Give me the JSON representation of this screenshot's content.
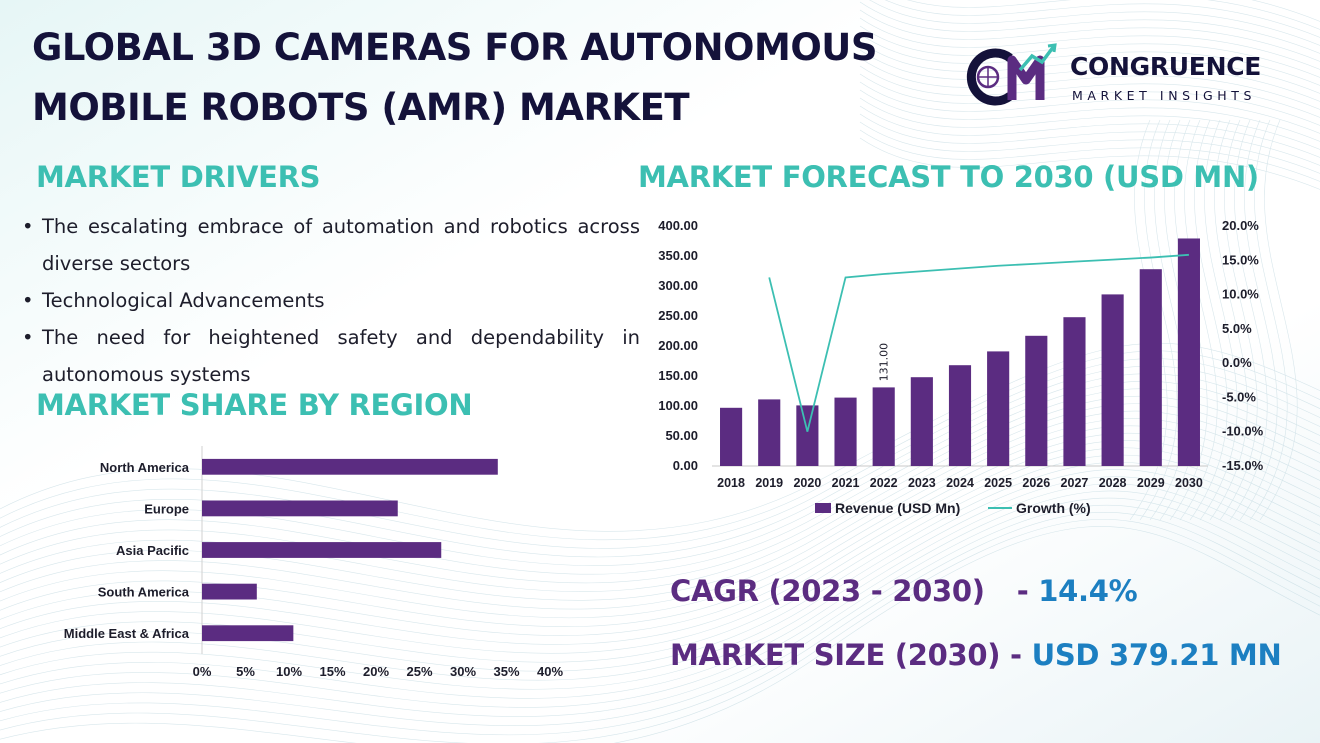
{
  "title": {
    "line1": "GLOBAL 3D CAMERAS FOR AUTONOMOUS",
    "line2": "MOBILE ROBOTS (AMR) MARKET"
  },
  "logo": {
    "mark": "CM",
    "name": "CONGRUENCE",
    "tagline": "MARKET INSIGHTS"
  },
  "drivers": {
    "heading": "MARKET DRIVERS",
    "items": [
      "The escalating embrace of automation and robotics across diverse sectors",
      "Technological Advancements",
      "The need for heightened safety and dependability in autonomous systems"
    ]
  },
  "forecast": {
    "heading": "MARKET FORECAST TO 2030 (USD MN)"
  },
  "region": {
    "heading": "MARKET SHARE BY REGION"
  },
  "stats": {
    "cagr_label": "CAGR (2023 - 2030)",
    "cagr_sep": "-",
    "cagr_value": "14.4%",
    "size_label": "MARKET SIZE (2030)",
    "size_sep": "-",
    "size_value": "USD 379.21 MN"
  },
  "colors": {
    "bar": "#5b2c81",
    "line": "#3cbfb2",
    "heading": "#3cbfb2",
    "title": "#14123a",
    "value": "#1c7fc1"
  },
  "chart_data": [
    {
      "type": "bar",
      "title": "MARKET FORECAST TO 2030 (USD MN)",
      "categories": [
        "2018",
        "2019",
        "2020",
        "2021",
        "2022",
        "2023",
        "2024",
        "2025",
        "2026",
        "2027",
        "2028",
        "2029",
        "2030"
      ],
      "series": [
        {
          "name": "Revenue (USD Mn)",
          "type": "bar",
          "axis": "left",
          "values": [
            97,
            111,
            101,
            114,
            131,
            148,
            168,
            191,
            217,
            248,
            286,
            328,
            379.21
          ]
        },
        {
          "name": "Growth (%)",
          "type": "line",
          "axis": "right",
          "values": [
            null,
            12.5,
            -10.0,
            12.5,
            13.0,
            13.4,
            13.8,
            14.2,
            14.5,
            14.8,
            15.1,
            15.4,
            15.8
          ]
        }
      ],
      "data_labels": [
        {
          "category": "2022",
          "text": "131.00"
        }
      ],
      "y_left": {
        "min": 0,
        "max": 400,
        "step": 50,
        "tick_labels": [
          "0.00",
          "50.00",
          "100.00",
          "150.00",
          "200.00",
          "250.00",
          "300.00",
          "350.00",
          "400.00"
        ]
      },
      "y_right": {
        "min": -15,
        "max": 20,
        "step": 5,
        "tick_labels": [
          "-15.0%",
          "-10.0%",
          "-5.0%",
          "0.0%",
          "5.0%",
          "10.0%",
          "15.0%",
          "20.0%"
        ]
      },
      "legend": {
        "position": "bottom",
        "entries": [
          "Revenue (USD Mn)",
          "Growth (%)"
        ]
      }
    },
    {
      "type": "bar",
      "orientation": "horizontal",
      "title": "MARKET SHARE BY REGION",
      "categories": [
        "North America",
        "Europe",
        "Asia Pacific",
        "South America",
        "Middle East & Africa"
      ],
      "values": [
        34,
        22.5,
        27.5,
        6.3,
        10.5
      ],
      "x_axis": {
        "min": 0,
        "max": 40,
        "step": 5,
        "tick_labels": [
          "0%",
          "5%",
          "10%",
          "15%",
          "20%",
          "25%",
          "30%",
          "35%",
          "40%"
        ]
      }
    }
  ]
}
